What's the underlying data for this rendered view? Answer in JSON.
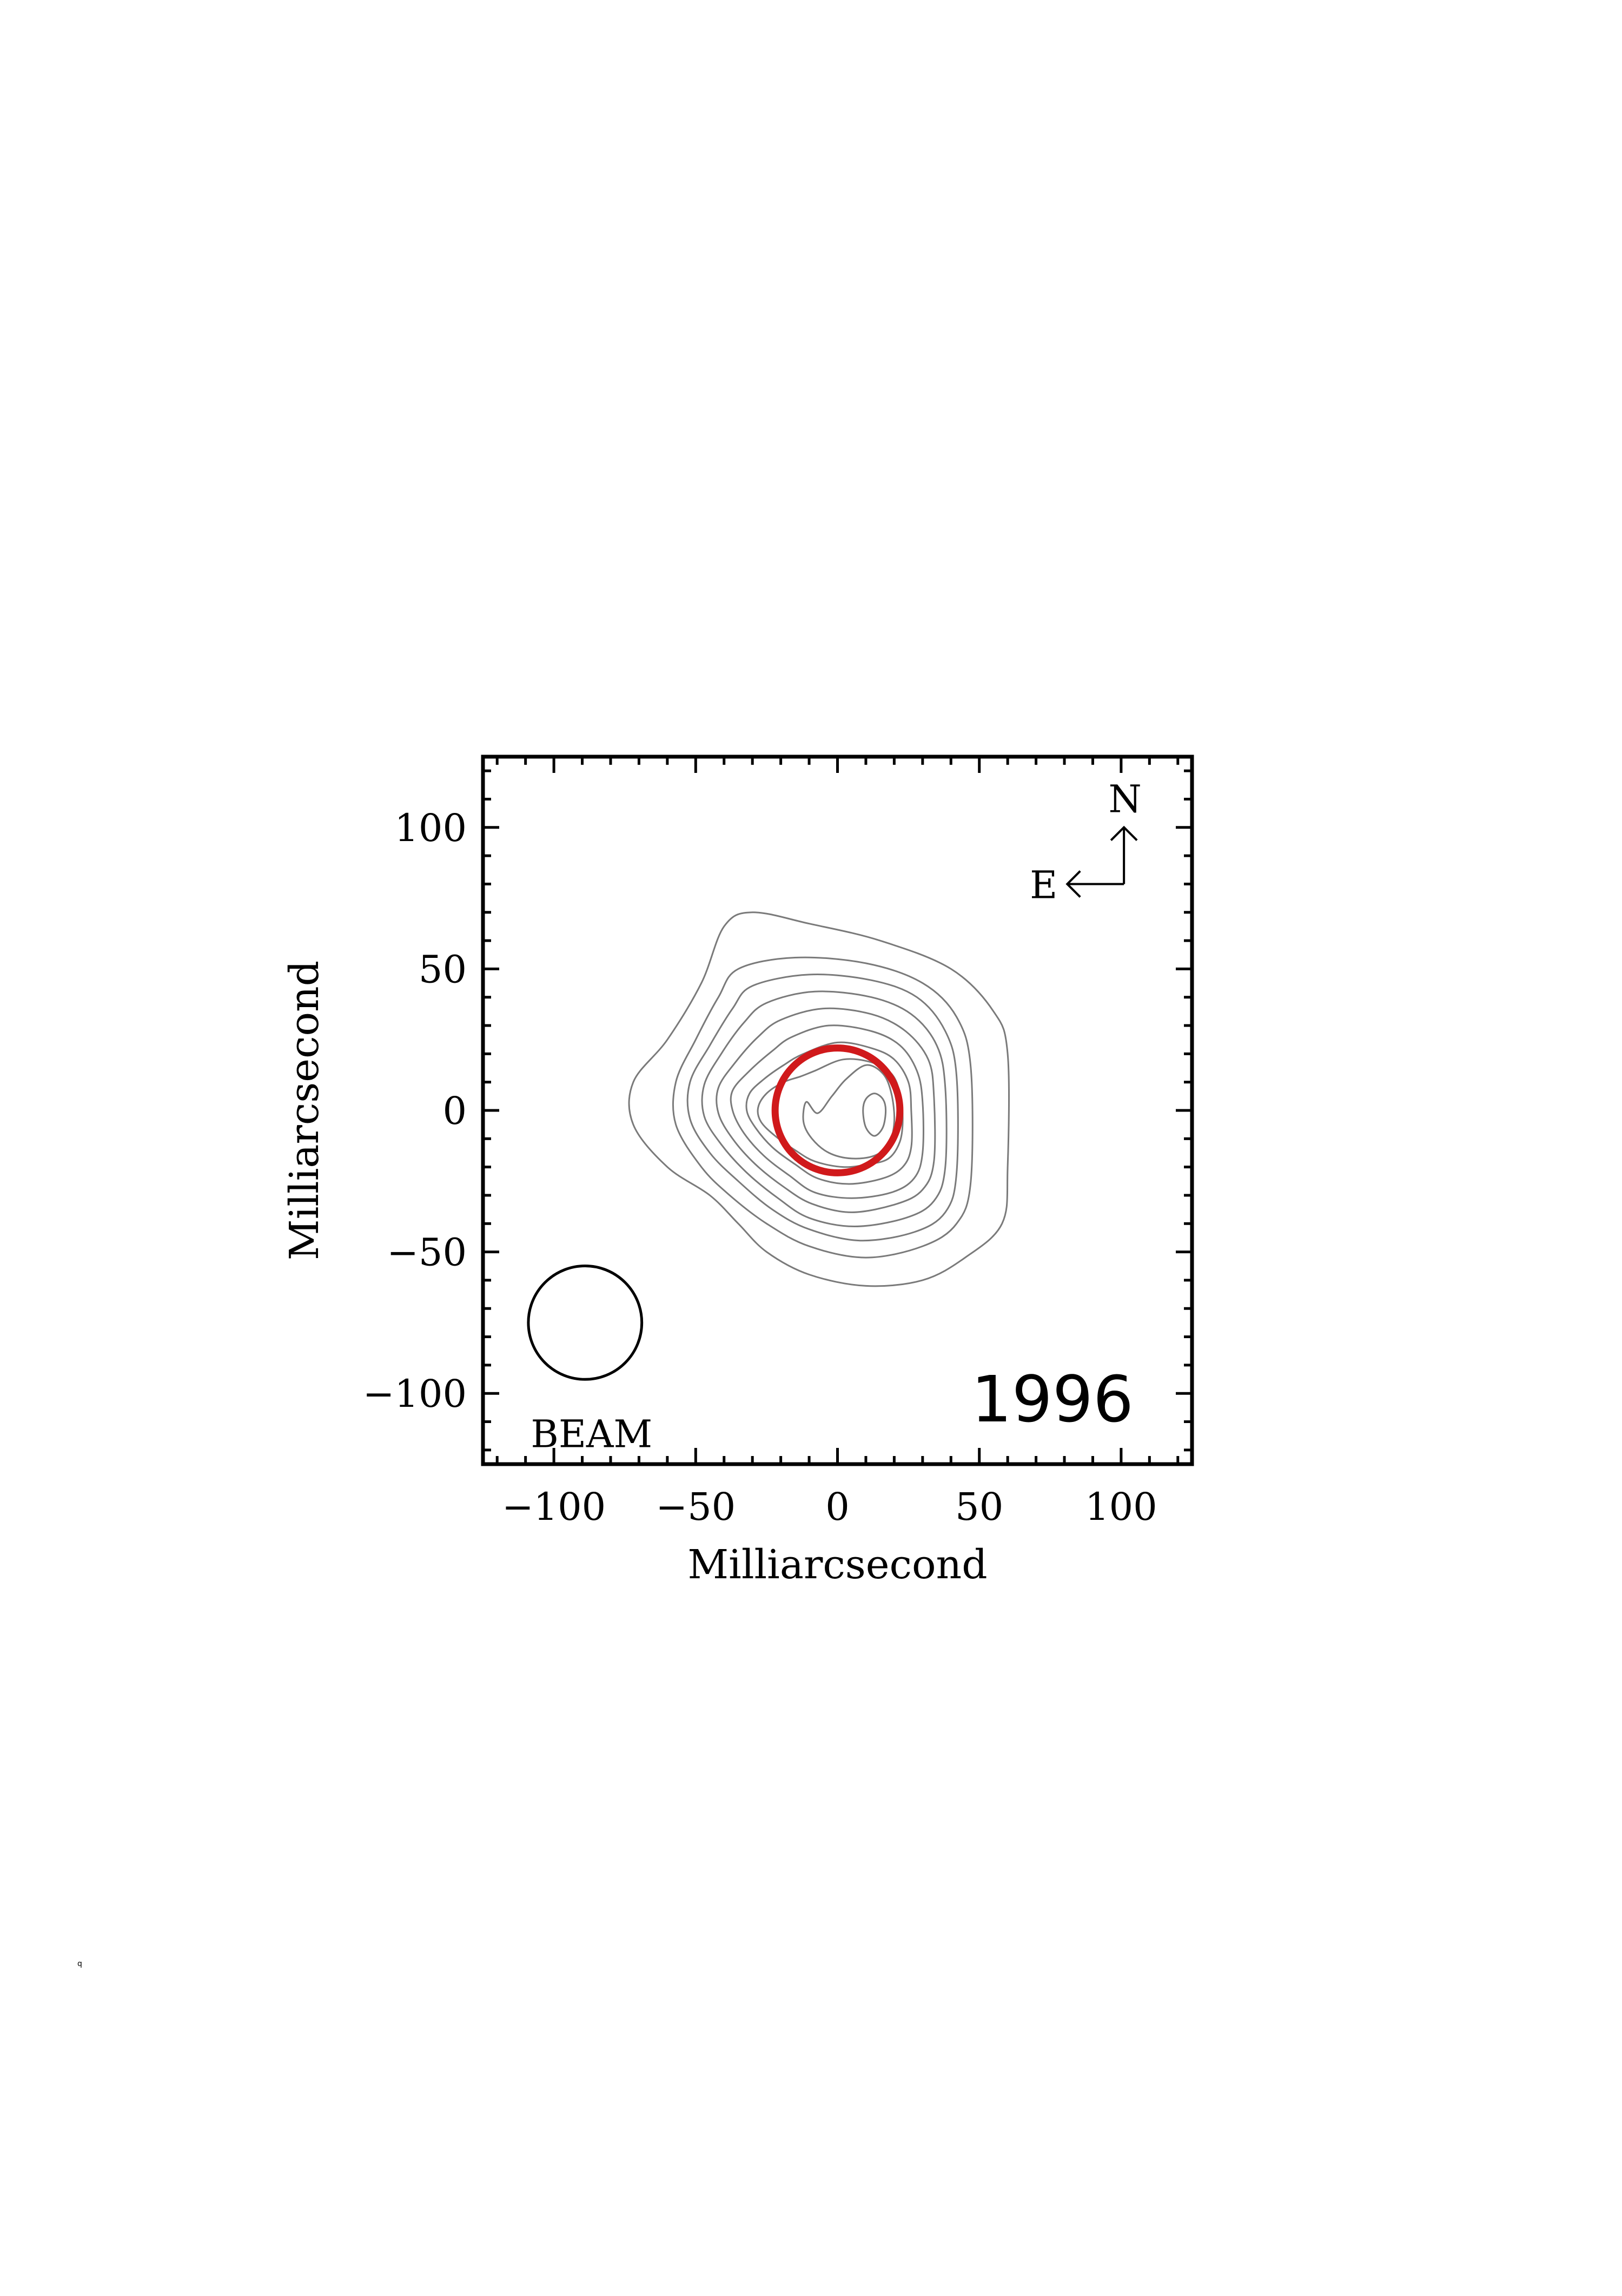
{
  "chart_data": {
    "type": "contour",
    "xlabel": "Milliarcsecond",
    "ylabel": "Milliarcsecond",
    "xlim": [
      -125,
      125
    ],
    "ylim": [
      -125,
      125
    ],
    "x_ticks": [
      -100,
      -50,
      0,
      50,
      100
    ],
    "y_ticks": [
      -100,
      -50,
      0,
      50,
      100
    ],
    "x_tick_labels": [
      "−100",
      "−50",
      "0",
      "50",
      "100"
    ],
    "y_tick_labels": [
      "−100",
      "−50",
      "0",
      "50",
      "100"
    ],
    "minor_tick_step": 10,
    "epoch_label": "1996",
    "beam": {
      "label": "BEAM",
      "center": [
        -89,
        -75
      ],
      "radius": 20
    },
    "compass": {
      "north": "N",
      "east": "E",
      "origin": [
        101,
        80
      ],
      "arm_length": 20
    },
    "fitted_ring": {
      "center": [
        0,
        0
      ],
      "radius": 22,
      "color": "#d0191b"
    },
    "contour_color": "#7a7a7a",
    "contours": [
      {
        "level": 1,
        "points": [
          [
            -40,
            65
          ],
          [
            -30,
            70
          ],
          [
            -10,
            66
          ],
          [
            15,
            60
          ],
          [
            40,
            50
          ],
          [
            55,
            35
          ],
          [
            60,
            20
          ],
          [
            60,
            -20
          ],
          [
            58,
            -40
          ],
          [
            45,
            -52
          ],
          [
            30,
            -60
          ],
          [
            10,
            -62
          ],
          [
            -10,
            -58
          ],
          [
            -25,
            -50
          ],
          [
            -35,
            -40
          ],
          [
            -45,
            -30
          ],
          [
            -60,
            -20
          ],
          [
            -72,
            -5
          ],
          [
            -72,
            10
          ],
          [
            -60,
            25
          ],
          [
            -48,
            45
          ]
        ]
      },
      {
        "level": 2,
        "points": [
          [
            -35,
            50
          ],
          [
            -15,
            54
          ],
          [
            10,
            52
          ],
          [
            30,
            45
          ],
          [
            42,
            33
          ],
          [
            47,
            15
          ],
          [
            47,
            -25
          ],
          [
            42,
            -40
          ],
          [
            30,
            -48
          ],
          [
            10,
            -52
          ],
          [
            -10,
            -48
          ],
          [
            -25,
            -40
          ],
          [
            -38,
            -30
          ],
          [
            -48,
            -20
          ],
          [
            -57,
            -5
          ],
          [
            -57,
            10
          ],
          [
            -50,
            25
          ],
          [
            -42,
            40
          ]
        ]
      },
      {
        "level": 3,
        "points": [
          [
            -30,
            44
          ],
          [
            -10,
            48
          ],
          [
            12,
            46
          ],
          [
            28,
            40
          ],
          [
            38,
            28
          ],
          [
            42,
            12
          ],
          [
            42,
            -22
          ],
          [
            38,
            -36
          ],
          [
            27,
            -43
          ],
          [
            8,
            -46
          ],
          [
            -10,
            -42
          ],
          [
            -23,
            -35
          ],
          [
            -35,
            -25
          ],
          [
            -45,
            -15
          ],
          [
            -52,
            -3
          ],
          [
            -52,
            10
          ],
          [
            -45,
            23
          ],
          [
            -37,
            36
          ]
        ]
      },
      {
        "level": 4,
        "points": [
          [
            -25,
            38
          ],
          [
            -8,
            42
          ],
          [
            12,
            40
          ],
          [
            26,
            34
          ],
          [
            35,
            23
          ],
          [
            38,
            8
          ],
          [
            38,
            -20
          ],
          [
            34,
            -32
          ],
          [
            24,
            -38
          ],
          [
            6,
            -41
          ],
          [
            -10,
            -38
          ],
          [
            -21,
            -31
          ],
          [
            -32,
            -22
          ],
          [
            -41,
            -12
          ],
          [
            -47,
            -2
          ],
          [
            -47,
            9
          ],
          [
            -41,
            20
          ],
          [
            -33,
            31
          ]
        ]
      },
      {
        "level": 5,
        "points": [
          [
            -20,
            32
          ],
          [
            -5,
            36
          ],
          [
            12,
            34
          ],
          [
            24,
            28
          ],
          [
            32,
            18
          ],
          [
            34,
            5
          ],
          [
            34,
            -18
          ],
          [
            30,
            -28
          ],
          [
            21,
            -33
          ],
          [
            5,
            -36
          ],
          [
            -9,
            -33
          ],
          [
            -19,
            -27
          ],
          [
            -29,
            -19
          ],
          [
            -37,
            -10
          ],
          [
            -42,
            -1
          ],
          [
            -42,
            8
          ],
          [
            -36,
            17
          ],
          [
            -28,
            26
          ]
        ]
      },
      {
        "level": 6,
        "points": [
          [
            -16,
            26
          ],
          [
            -3,
            30
          ],
          [
            12,
            28
          ],
          [
            22,
            23
          ],
          [
            28,
            14
          ],
          [
            30,
            3
          ],
          [
            30,
            -15
          ],
          [
            27,
            -24
          ],
          [
            19,
            -29
          ],
          [
            5,
            -31
          ],
          [
            -8,
            -29
          ],
          [
            -17,
            -23
          ],
          [
            -26,
            -16
          ],
          [
            -33,
            -8
          ],
          [
            -37,
            0
          ],
          [
            -37,
            7
          ],
          [
            -31,
            14
          ],
          [
            -23,
            21
          ]
        ]
      },
      {
        "level": 7,
        "points": [
          [
            -12,
            20
          ],
          [
            0,
            24
          ],
          [
            12,
            22
          ],
          [
            20,
            18
          ],
          [
            25,
            10
          ],
          [
            26,
            0
          ],
          [
            26,
            -13
          ],
          [
            23,
            -20
          ],
          [
            16,
            -24
          ],
          [
            4,
            -26
          ],
          [
            -7,
            -24
          ],
          [
            -15,
            -19
          ],
          [
            -23,
            -13
          ],
          [
            -29,
            -6
          ],
          [
            -32,
            0
          ],
          [
            -31,
            6
          ],
          [
            -26,
            11
          ],
          [
            -19,
            16
          ]
        ]
      },
      {
        "level": 8,
        "points": [
          [
            -8,
            14
          ],
          [
            2,
            18
          ],
          [
            12,
            17
          ],
          [
            19,
            13
          ],
          [
            22,
            6
          ],
          [
            23,
            -3
          ],
          [
            22,
            -11
          ],
          [
            18,
            -17
          ],
          [
            11,
            -19
          ],
          [
            2,
            -20
          ],
          [
            -8,
            -18
          ],
          [
            -15,
            -14
          ],
          [
            -22,
            -9
          ],
          [
            -27,
            -4
          ],
          [
            -28,
            1
          ],
          [
            -25,
            6
          ],
          [
            -19,
            10
          ],
          [
            -13,
            12
          ]
        ]
      },
      {
        "level": 9,
        "points": [
          [
            10,
            16
          ],
          [
            16,
            13
          ],
          [
            19,
            6
          ],
          [
            20,
            -4
          ],
          [
            18,
            -12
          ],
          [
            13,
            -16
          ],
          [
            5,
            -17
          ],
          [
            -3,
            -15
          ],
          [
            -9,
            -10
          ],
          [
            -12,
            -4
          ],
          [
            -11,
            3
          ],
          [
            -7,
            -1
          ],
          [
            -2,
            5
          ],
          [
            3,
            11
          ]
        ]
      },
      {
        "level": 10,
        "points": [
          [
            13,
            6
          ],
          [
            16,
            4
          ],
          [
            17,
            0
          ],
          [
            16,
            -6
          ],
          [
            13,
            -9
          ],
          [
            10,
            -6
          ],
          [
            9,
            0
          ],
          [
            10,
            4
          ]
        ]
      }
    ]
  },
  "page_mark": "q"
}
